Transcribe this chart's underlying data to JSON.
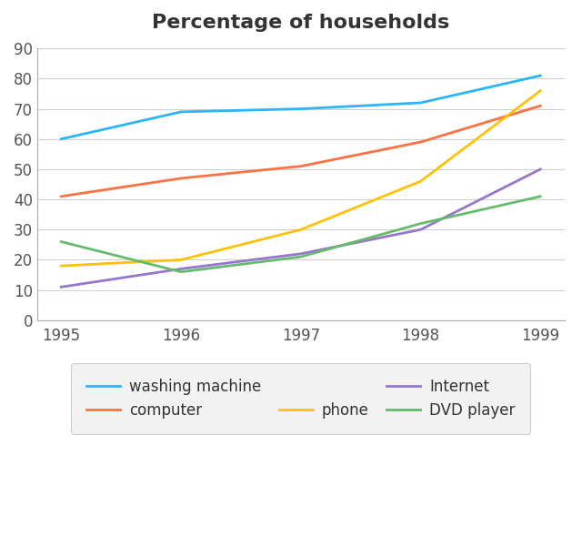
{
  "title": "Percentage of households",
  "years": [
    1995,
    1996,
    1997,
    1998,
    1999
  ],
  "series": {
    "washing machine": {
      "values": [
        60,
        69,
        70,
        72,
        81
      ],
      "color": "#29B6F6"
    },
    "computer": {
      "values": [
        41,
        47,
        51,
        59,
        71
      ],
      "color": "#FF7043"
    },
    "phone": {
      "values": [
        18,
        20,
        30,
        46,
        76
      ],
      "color": "#FFC107"
    },
    "Internet": {
      "values": [
        11,
        17,
        22,
        30,
        50
      ],
      "color": "#9575CD"
    },
    "DVD player": {
      "values": [
        26,
        16,
        21,
        32,
        41
      ],
      "color": "#66BB6A"
    }
  },
  "ylim": [
    0,
    90
  ],
  "yticks": [
    0,
    10,
    20,
    30,
    40,
    50,
    60,
    70,
    80,
    90
  ],
  "legend_row1": [
    "washing machine",
    "computer"
  ],
  "legend_row2": [
    "phone",
    "Internet",
    "DVD player"
  ],
  "background_color": "#ffffff",
  "plot_bg_color": "#f9f9f9",
  "grid_color": "#d0d0d0",
  "title_fontsize": 16,
  "axis_fontsize": 12,
  "line_width": 2.0,
  "legend_bg": "#f2f2f2",
  "legend_edge": "#cccccc"
}
